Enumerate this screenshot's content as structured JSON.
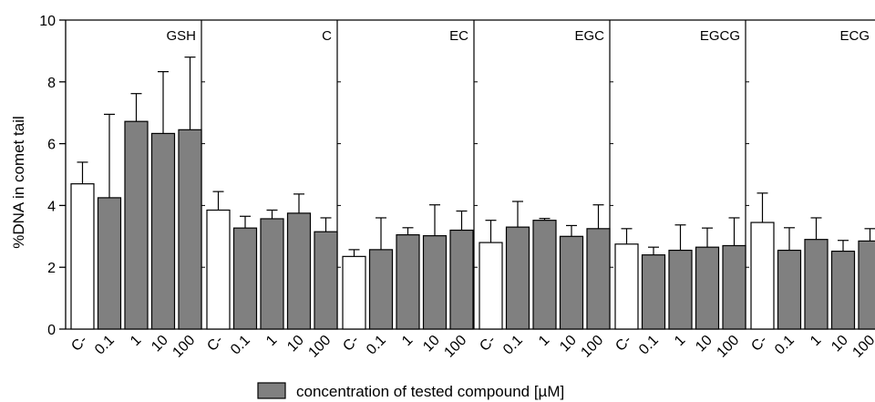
{
  "chart_data": {
    "type": "bar",
    "ylabel": "%DNA in comet tail",
    "ylim": [
      0,
      10
    ],
    "yticks": [
      0,
      2,
      4,
      6,
      8,
      10
    ],
    "categories": [
      "C-",
      "0.1",
      "1",
      "10",
      "100"
    ],
    "panels": [
      {
        "name": "GSH",
        "values": [
          4.7,
          4.25,
          6.72,
          6.33,
          6.45
        ],
        "errors": [
          0.7,
          2.7,
          0.9,
          2.0,
          2.35
        ]
      },
      {
        "name": "C",
        "values": [
          3.85,
          3.27,
          3.57,
          3.75,
          3.15
        ],
        "errors": [
          0.6,
          0.38,
          0.28,
          0.62,
          0.45
        ]
      },
      {
        "name": "EC",
        "values": [
          2.35,
          2.57,
          3.05,
          3.02,
          3.2
        ],
        "errors": [
          0.22,
          1.03,
          0.23,
          1.0,
          0.62
        ]
      },
      {
        "name": "EGC",
        "values": [
          2.8,
          3.3,
          3.52,
          3.0,
          3.25
        ],
        "errors": [
          0.72,
          0.83,
          0.06,
          0.35,
          0.77
        ]
      },
      {
        "name": "EGCG",
        "values": [
          2.75,
          2.4,
          2.55,
          2.65,
          2.7
        ],
        "errors": [
          0.5,
          0.25,
          0.82,
          0.62,
          0.9
        ]
      },
      {
        "name": "ECG",
        "values": [
          3.45,
          2.55,
          2.9,
          2.52,
          2.85
        ],
        "errors": [
          0.95,
          0.73,
          0.7,
          0.35,
          0.4
        ]
      }
    ],
    "legend": {
      "label": "concentration of tested compound [µM]",
      "position": "bottom"
    },
    "colors": {
      "control": "#ffffff",
      "treated": "#808080",
      "axis": "#000000"
    }
  }
}
